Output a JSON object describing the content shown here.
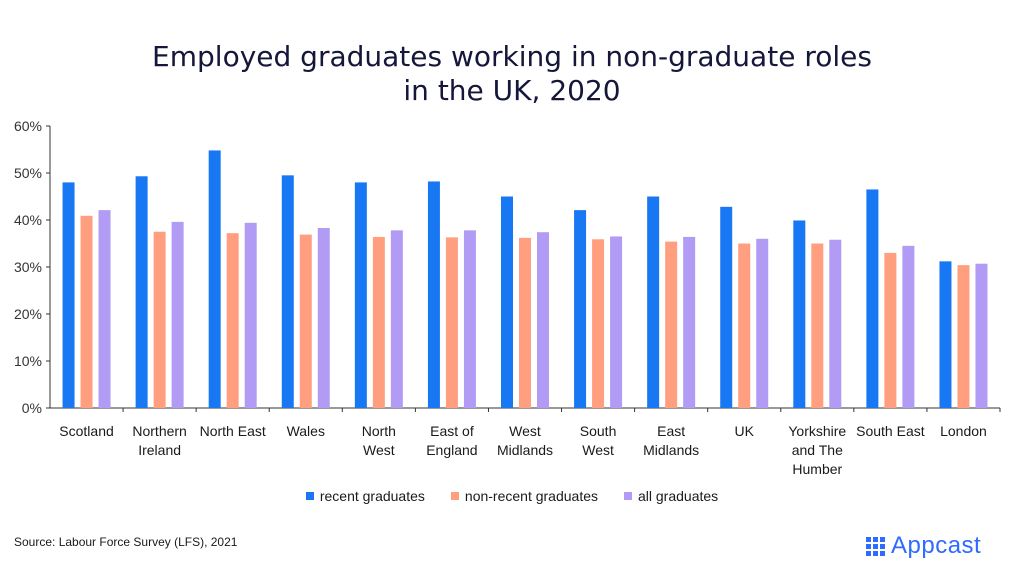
{
  "chart_data": {
    "type": "bar",
    "title_lines": [
      "Employed graduates working in non-graduate roles",
      "in the UK, 2020"
    ],
    "categories": [
      [
        "Scotland"
      ],
      [
        "Northern",
        "Ireland"
      ],
      [
        "North East"
      ],
      [
        "Wales"
      ],
      [
        "North",
        "West"
      ],
      [
        "East of",
        "England"
      ],
      [
        "West",
        "Midlands"
      ],
      [
        "South",
        "West"
      ],
      [
        "East",
        "Midlands"
      ],
      [
        "UK"
      ],
      [
        "Yorkshire",
        "and The",
        "Humber"
      ],
      [
        "South East"
      ],
      [
        "London"
      ]
    ],
    "series": [
      {
        "name": "recent graduates",
        "color": "#1877f2",
        "values": [
          48.0,
          49.3,
          54.8,
          49.5,
          48.0,
          48.2,
          45.0,
          42.1,
          45.0,
          42.8,
          39.9,
          46.5,
          31.2
        ]
      },
      {
        "name": "non-recent graduates",
        "color": "#ff9f7f",
        "values": [
          40.9,
          37.5,
          37.2,
          36.9,
          36.4,
          36.3,
          36.2,
          35.9,
          35.4,
          35.0,
          35.0,
          33.0,
          30.4
        ]
      },
      {
        "name": "all graduates",
        "color": "#b19bf5",
        "values": [
          42.1,
          39.6,
          39.4,
          38.3,
          37.8,
          37.8,
          37.4,
          36.5,
          36.4,
          36.0,
          35.8,
          34.5,
          30.7
        ]
      }
    ],
    "yticks": [
      "0%",
      "10%",
      "20%",
      "30%",
      "40%",
      "50%",
      "60%"
    ],
    "ylim": [
      0,
      60
    ],
    "grid": false,
    "legend_position": "bottom"
  },
  "source": "Source: Labour Force Survey (LFS), 2021",
  "logo": {
    "text": "Appcast",
    "icon": "appcast-dots-icon",
    "color": "#2f6bff"
  }
}
